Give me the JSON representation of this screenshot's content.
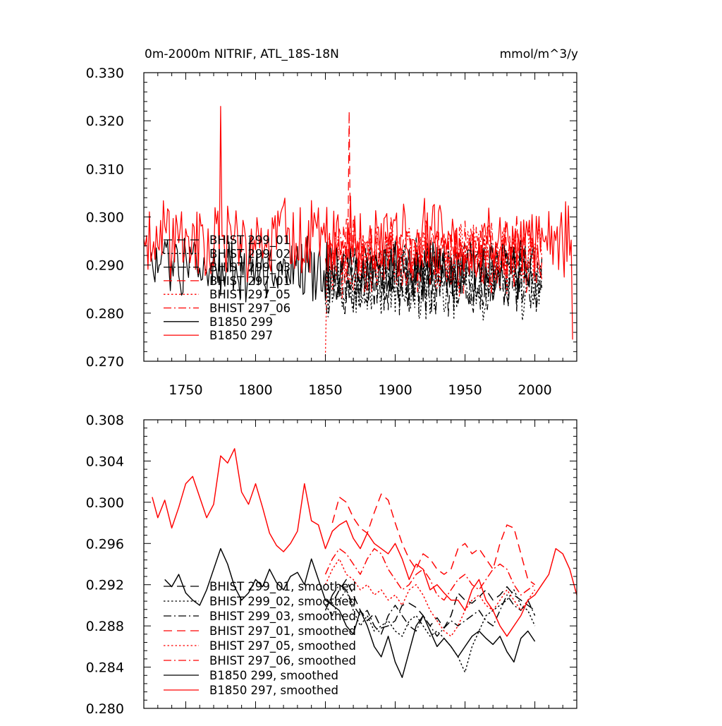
{
  "colors": {
    "black": "#000000",
    "red": "#ff0000"
  },
  "chart_data": [
    {
      "type": "line",
      "title": "0m-2000m NITRIF, ATL_18S-18N",
      "units": "mmol/m^3/y",
      "xlim": [
        1720,
        2030
      ],
      "ylim": [
        0.27,
        0.33
      ],
      "x_ticks": [
        1750,
        1800,
        1850,
        1900,
        1950,
        2000
      ],
      "x_tick_labels": [
        "1750",
        "1800",
        "1850",
        "1900",
        "1950",
        "2000"
      ],
      "y_ticks": [
        0.27,
        0.28,
        0.29,
        0.3,
        0.31,
        0.32,
        0.33
      ],
      "y_tick_labels": [
        "0.270",
        "0.280",
        "0.290",
        "0.300",
        "0.310",
        "0.320",
        "0.330"
      ],
      "grid": false,
      "legend_position": "lower-left",
      "series": [
        {
          "name": "BHIST 299_01",
          "color": "#000000",
          "dash": "long-dash",
          "x_range": [
            1850,
            2005
          ],
          "mean": 0.2875,
          "amp": 0.0065,
          "seed": 11,
          "peaks": []
        },
        {
          "name": "BHIST 299_02",
          "color": "#000000",
          "dash": "dotted",
          "x_range": [
            1850,
            2005
          ],
          "mean": 0.2865,
          "amp": 0.0065,
          "seed": 12,
          "peaks": []
        },
        {
          "name": "BHIST 299_03",
          "color": "#000000",
          "dash": "dash-dot",
          "x_range": [
            1850,
            2005
          ],
          "mean": 0.2875,
          "amp": 0.0065,
          "seed": 13,
          "peaks": []
        },
        {
          "name": "BHIST 297_01",
          "color": "#ff0000",
          "dash": "long-dash",
          "x_range": [
            1850,
            2005
          ],
          "mean": 0.2925,
          "amp": 0.0065,
          "seed": 21,
          "peaks": [
            [
              1867,
              0.322
            ]
          ]
        },
        {
          "name": "BHIST 297_05",
          "color": "#ff0000",
          "dash": "dotted",
          "x_range": [
            1850,
            2005
          ],
          "mean": 0.2915,
          "amp": 0.0065,
          "seed": 22,
          "peaks": [
            [
              1850,
              0.271
            ]
          ]
        },
        {
          "name": "BHIST 297_06",
          "color": "#ff0000",
          "dash": "dash-dot",
          "x_range": [
            1850,
            2005
          ],
          "mean": 0.2925,
          "amp": 0.0065,
          "seed": 23,
          "peaks": []
        },
        {
          "name": "B1850 299",
          "color": "#000000",
          "dash": "solid",
          "x_range": [
            1725,
            2000
          ],
          "mean": 0.2895,
          "amp": 0.0055,
          "seed": 31,
          "peaks": []
        },
        {
          "name": "B1850 297",
          "color": "#ff0000",
          "dash": "solid",
          "x_range": [
            1720,
            2027
          ],
          "mean": 0.2955,
          "amp": 0.0068,
          "seed": 32,
          "peaks": [
            [
              1775,
              0.323
            ],
            [
              2027,
              0.2745
            ]
          ]
        }
      ]
    },
    {
      "type": "line",
      "xlim": [
        1720,
        2030
      ],
      "ylim": [
        0.28,
        0.308
      ],
      "x_ticks": [
        1750,
        1800,
        1850,
        1900,
        1950,
        2000
      ],
      "y_ticks": [
        0.28,
        0.284,
        0.288,
        0.292,
        0.296,
        0.3,
        0.304,
        0.308
      ],
      "y_tick_labels": [
        "0.280",
        "0.284",
        "0.288",
        "0.292",
        "0.296",
        "0.300",
        "0.304",
        "0.308"
      ],
      "grid": false,
      "legend_position": "lower-left",
      "series": [
        {
          "name": "BHIST 299_01, smoothed",
          "color": "#000000",
          "dash": "long-dash",
          "x": [
            1850,
            1855,
            1860,
            1865,
            1870,
            1875,
            1880,
            1885,
            1890,
            1895,
            1900,
            1905,
            1910,
            1915,
            1920,
            1925,
            1930,
            1935,
            1940,
            1945,
            1950,
            1955,
            1960,
            1965,
            1970,
            1975,
            1980,
            1985,
            1990,
            1995,
            2000
          ],
          "y": [
            0.2905,
            0.2902,
            0.2915,
            0.2925,
            0.291,
            0.2895,
            0.2885,
            0.2892,
            0.2878,
            0.288,
            0.2885,
            0.29,
            0.2902,
            0.2898,
            0.289,
            0.288,
            0.2888,
            0.2878,
            0.289,
            0.2912,
            0.2905,
            0.2902,
            0.2908,
            0.2915,
            0.2905,
            0.291,
            0.2918,
            0.291,
            0.2905,
            0.29,
            0.2895
          ]
        },
        {
          "name": "BHIST 299_02, smoothed",
          "color": "#000000",
          "dash": "dotted",
          "x": [
            1850,
            1855,
            1860,
            1865,
            1870,
            1875,
            1880,
            1885,
            1890,
            1895,
            1900,
            1905,
            1910,
            1915,
            1920,
            1925,
            1930,
            1935,
            1940,
            1945,
            1950,
            1955,
            1960,
            1965,
            1970,
            1975,
            1980,
            1985,
            1990,
            1995,
            2000
          ],
          "y": [
            0.29,
            0.289,
            0.2905,
            0.2915,
            0.2895,
            0.288,
            0.289,
            0.2875,
            0.288,
            0.2885,
            0.2875,
            0.287,
            0.2885,
            0.289,
            0.288,
            0.287,
            0.2875,
            0.2868,
            0.286,
            0.285,
            0.2835,
            0.286,
            0.2875,
            0.289,
            0.2895,
            0.29,
            0.2905,
            0.2915,
            0.29,
            0.2895,
            0.288
          ]
        },
        {
          "name": "BHIST 299_03, smoothed",
          "color": "#000000",
          "dash": "dash-dot",
          "x": [
            1850,
            1855,
            1860,
            1865,
            1870,
            1875,
            1880,
            1885,
            1890,
            1895,
            1900,
            1905,
            1910,
            1915,
            1920,
            1925,
            1930,
            1935,
            1940,
            1945,
            1950,
            1955,
            1960,
            1965,
            1970,
            1975,
            1980,
            1985,
            1990,
            1995,
            2000
          ],
          "y": [
            0.2895,
            0.291,
            0.292,
            0.2915,
            0.29,
            0.289,
            0.2895,
            0.288,
            0.2872,
            0.289,
            0.29,
            0.289,
            0.288,
            0.2875,
            0.289,
            0.288,
            0.287,
            0.2878,
            0.2885,
            0.288,
            0.2885,
            0.289,
            0.2895,
            0.2885,
            0.288,
            0.2895,
            0.291,
            0.29,
            0.2895,
            0.2905,
            0.289
          ]
        },
        {
          "name": "BHIST 297_01, smoothed",
          "color": "#ff0000",
          "dash": "long-dash",
          "x": [
            1855,
            1860,
            1865,
            1870,
            1875,
            1880,
            1885,
            1890,
            1895,
            1900,
            1905,
            1910,
            1915,
            1920,
            1925,
            1930,
            1935,
            1940,
            1945,
            1950,
            1955,
            1960,
            1965,
            1970,
            1975,
            1980,
            1985,
            1990,
            1995,
            2000
          ],
          "y": [
            0.298,
            0.3005,
            0.3,
            0.2985,
            0.2975,
            0.297,
            0.299,
            0.3008,
            0.3002,
            0.298,
            0.296,
            0.2945,
            0.2935,
            0.295,
            0.2945,
            0.2935,
            0.293,
            0.2935,
            0.2955,
            0.296,
            0.295,
            0.2955,
            0.2945,
            0.2935,
            0.296,
            0.2978,
            0.2975,
            0.295,
            0.2925,
            0.292
          ]
        },
        {
          "name": "BHIST 297_05, smoothed",
          "color": "#ff0000",
          "dash": "dotted",
          "x": [
            1850,
            1855,
            1860,
            1865,
            1870,
            1875,
            1880,
            1885,
            1890,
            1895,
            1900,
            1905,
            1910,
            1915,
            1920,
            1925,
            1930,
            1935,
            1940,
            1945,
            1950,
            1955,
            1960,
            1965,
            1970,
            1975,
            1980,
            1985,
            1990,
            1995,
            2000
          ],
          "y": [
            0.292,
            0.2935,
            0.2945,
            0.293,
            0.2925,
            0.2915,
            0.292,
            0.291,
            0.2915,
            0.2905,
            0.291,
            0.29,
            0.2915,
            0.292,
            0.291,
            0.2895,
            0.2885,
            0.2875,
            0.287,
            0.288,
            0.2895,
            0.2905,
            0.291,
            0.29,
            0.2895,
            0.2905,
            0.2915,
            0.2905,
            0.2895,
            0.2905,
            0.2915
          ]
        },
        {
          "name": "BHIST 297_06, smoothed",
          "color": "#ff0000",
          "dash": "dash-dot",
          "x": [
            1850,
            1855,
            1860,
            1865,
            1870,
            1875,
            1880,
            1885,
            1890,
            1895,
            1900,
            1905,
            1910,
            1915,
            1920,
            1925,
            1930,
            1935,
            1940,
            1945,
            1950,
            1955,
            1960,
            1965,
            1970,
            1975,
            1980,
            1985,
            1990,
            1995,
            2000
          ],
          "y": [
            0.293,
            0.2945,
            0.2955,
            0.295,
            0.294,
            0.293,
            0.2945,
            0.2955,
            0.295,
            0.2935,
            0.2925,
            0.2915,
            0.292,
            0.293,
            0.2935,
            0.2925,
            0.291,
            0.2905,
            0.2915,
            0.2925,
            0.293,
            0.292,
            0.2915,
            0.2925,
            0.2935,
            0.294,
            0.2935,
            0.292,
            0.291,
            0.2915,
            0.292
          ]
        },
        {
          "name": "B1850 299, smoothed",
          "color": "#000000",
          "dash": "solid",
          "x": [
            1735,
            1740,
            1745,
            1750,
            1755,
            1760,
            1765,
            1770,
            1775,
            1780,
            1785,
            1790,
            1795,
            1800,
            1805,
            1810,
            1815,
            1820,
            1825,
            1830,
            1835,
            1840,
            1845,
            1850,
            1855,
            1860,
            1865,
            1870,
            1875,
            1880,
            1885,
            1890,
            1895,
            1900,
            1905,
            1910,
            1915,
            1920,
            1925,
            1930,
            1935,
            1940,
            1945,
            1950,
            1955,
            1960,
            1965,
            1970,
            1975,
            1980,
            1985,
            1990,
            1995,
            2000
          ],
          "y": [
            0.2925,
            0.2918,
            0.293,
            0.2912,
            0.2905,
            0.29,
            0.2915,
            0.2935,
            0.2955,
            0.294,
            0.2918,
            0.2905,
            0.2912,
            0.2925,
            0.2918,
            0.2935,
            0.2922,
            0.2915,
            0.2928,
            0.2932,
            0.292,
            0.2945,
            0.2925,
            0.2905,
            0.29,
            0.2895,
            0.288,
            0.2872,
            0.2895,
            0.288,
            0.286,
            0.285,
            0.287,
            0.2845,
            0.283,
            0.2855,
            0.288,
            0.289,
            0.2875,
            0.286,
            0.2868,
            0.286,
            0.285,
            0.286,
            0.287,
            0.2875,
            0.2868,
            0.2862,
            0.287,
            0.2855,
            0.2845,
            0.2868,
            0.2875,
            0.2865
          ]
        },
        {
          "name": "B1850 297, smoothed",
          "color": "#ff0000",
          "dash": "solid",
          "x": [
            1726,
            1730,
            1735,
            1740,
            1745,
            1750,
            1755,
            1760,
            1765,
            1770,
            1775,
            1780,
            1785,
            1790,
            1795,
            1800,
            1805,
            1810,
            1815,
            1820,
            1825,
            1830,
            1835,
            1840,
            1845,
            1850,
            1855,
            1860,
            1865,
            1870,
            1875,
            1880,
            1885,
            1890,
            1895,
            1900,
            1905,
            1910,
            1915,
            1920,
            1925,
            1930,
            1935,
            1940,
            1945,
            1950,
            1955,
            1960,
            1965,
            1970,
            1975,
            1980,
            1985,
            1990,
            1995,
            2000,
            2005,
            2010,
            2015,
            2020,
            2025,
            2030
          ],
          "y": [
            0.3005,
            0.2985,
            0.3002,
            0.2975,
            0.2995,
            0.3018,
            0.3025,
            0.3005,
            0.2985,
            0.2998,
            0.3045,
            0.3038,
            0.3052,
            0.301,
            0.2998,
            0.3018,
            0.2995,
            0.297,
            0.2958,
            0.2952,
            0.296,
            0.2972,
            0.3018,
            0.2982,
            0.2978,
            0.2955,
            0.2972,
            0.2978,
            0.2982,
            0.2965,
            0.2955,
            0.297,
            0.296,
            0.2955,
            0.295,
            0.296,
            0.2945,
            0.2925,
            0.294,
            0.2935,
            0.2915,
            0.292,
            0.2912,
            0.2905,
            0.2905,
            0.2895,
            0.2915,
            0.2925,
            0.2905,
            0.2895,
            0.288,
            0.287,
            0.288,
            0.289,
            0.2905,
            0.291,
            0.292,
            0.293,
            0.2955,
            0.295,
            0.2935,
            0.291
          ]
        }
      ]
    }
  ]
}
